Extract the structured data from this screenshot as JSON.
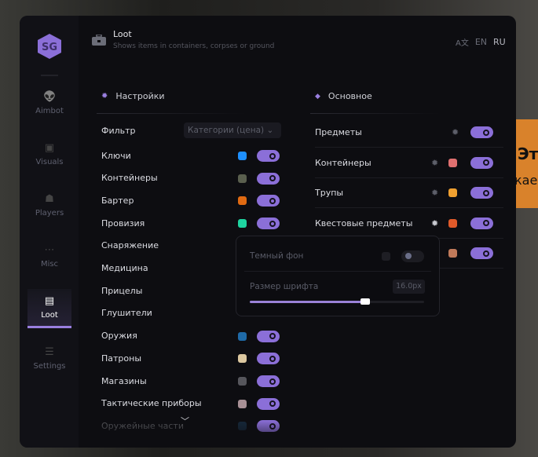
{
  "background": {
    "banner_line1": "Эт",
    "banner_line2": "кае",
    "banner_color": "#d9822b"
  },
  "sidebar": {
    "logo": "SG",
    "items": [
      {
        "label": "Aimbot",
        "icon": "alien-icon"
      },
      {
        "label": "Visuals",
        "icon": "vr-headset-icon"
      },
      {
        "label": "Players",
        "icon": "users-icon"
      },
      {
        "label": "Misc",
        "icon": "dots-circle-icon"
      },
      {
        "label": "Loot",
        "icon": "toolbox-icon",
        "active": true
      },
      {
        "label": "Settings",
        "icon": "list-icon"
      }
    ]
  },
  "header": {
    "title": "Loot",
    "subtitle": "Shows items in containers, corpses or ground",
    "lang_options": [
      "EN",
      "RU"
    ],
    "lang_selected": "RU"
  },
  "settings": {
    "title": "Настройки",
    "filter_label": "Фильтр",
    "filter_value": "Категории (цена)",
    "items": [
      {
        "label": "Ключи",
        "color": "#1e90ff",
        "on": true
      },
      {
        "label": "Контейнеры",
        "color": "#5a5f4e",
        "on": true
      },
      {
        "label": "Бартер",
        "color": "#e06a12",
        "on": true
      },
      {
        "label": "Провизия",
        "color": "#1ed4a0",
        "on": true
      },
      {
        "label": "Снаряжение"
      },
      {
        "label": "Медицина"
      },
      {
        "label": "Прицелы"
      },
      {
        "label": "Глушители"
      },
      {
        "label": "Оружия",
        "color": "#1f6aa8",
        "on": true
      },
      {
        "label": "Патроны",
        "color": "#dcc8a0",
        "on": true
      },
      {
        "label": "Магазины",
        "color": "#56565c",
        "on": true
      },
      {
        "label": "Тактические приборы",
        "color": "#a89096",
        "on": true
      },
      {
        "label": "Оружейные части",
        "color": "#16283a",
        "on": true
      }
    ]
  },
  "main": {
    "title": "Основное",
    "items": [
      {
        "label": "Предметы",
        "gear": true,
        "on": true
      },
      {
        "label": "Контейнеры",
        "gear": true,
        "color": "#e07070",
        "on": true
      },
      {
        "label": "Трупы",
        "gear": true,
        "color": "#f0a030",
        "on": true
      },
      {
        "label": "Квестовые предметы",
        "gear": true,
        "color": "#e05a2a",
        "on": true
      },
      {
        "label": "",
        "color": "#c07a5a",
        "on": true
      }
    ]
  },
  "popup": {
    "dark_bg_label": "Темный фон",
    "dark_bg_on": false,
    "font_size_label": "Размер шрифта",
    "font_size_value": "16.0px",
    "font_size_fraction": 0.66
  },
  "accent": "#8b6fd8"
}
